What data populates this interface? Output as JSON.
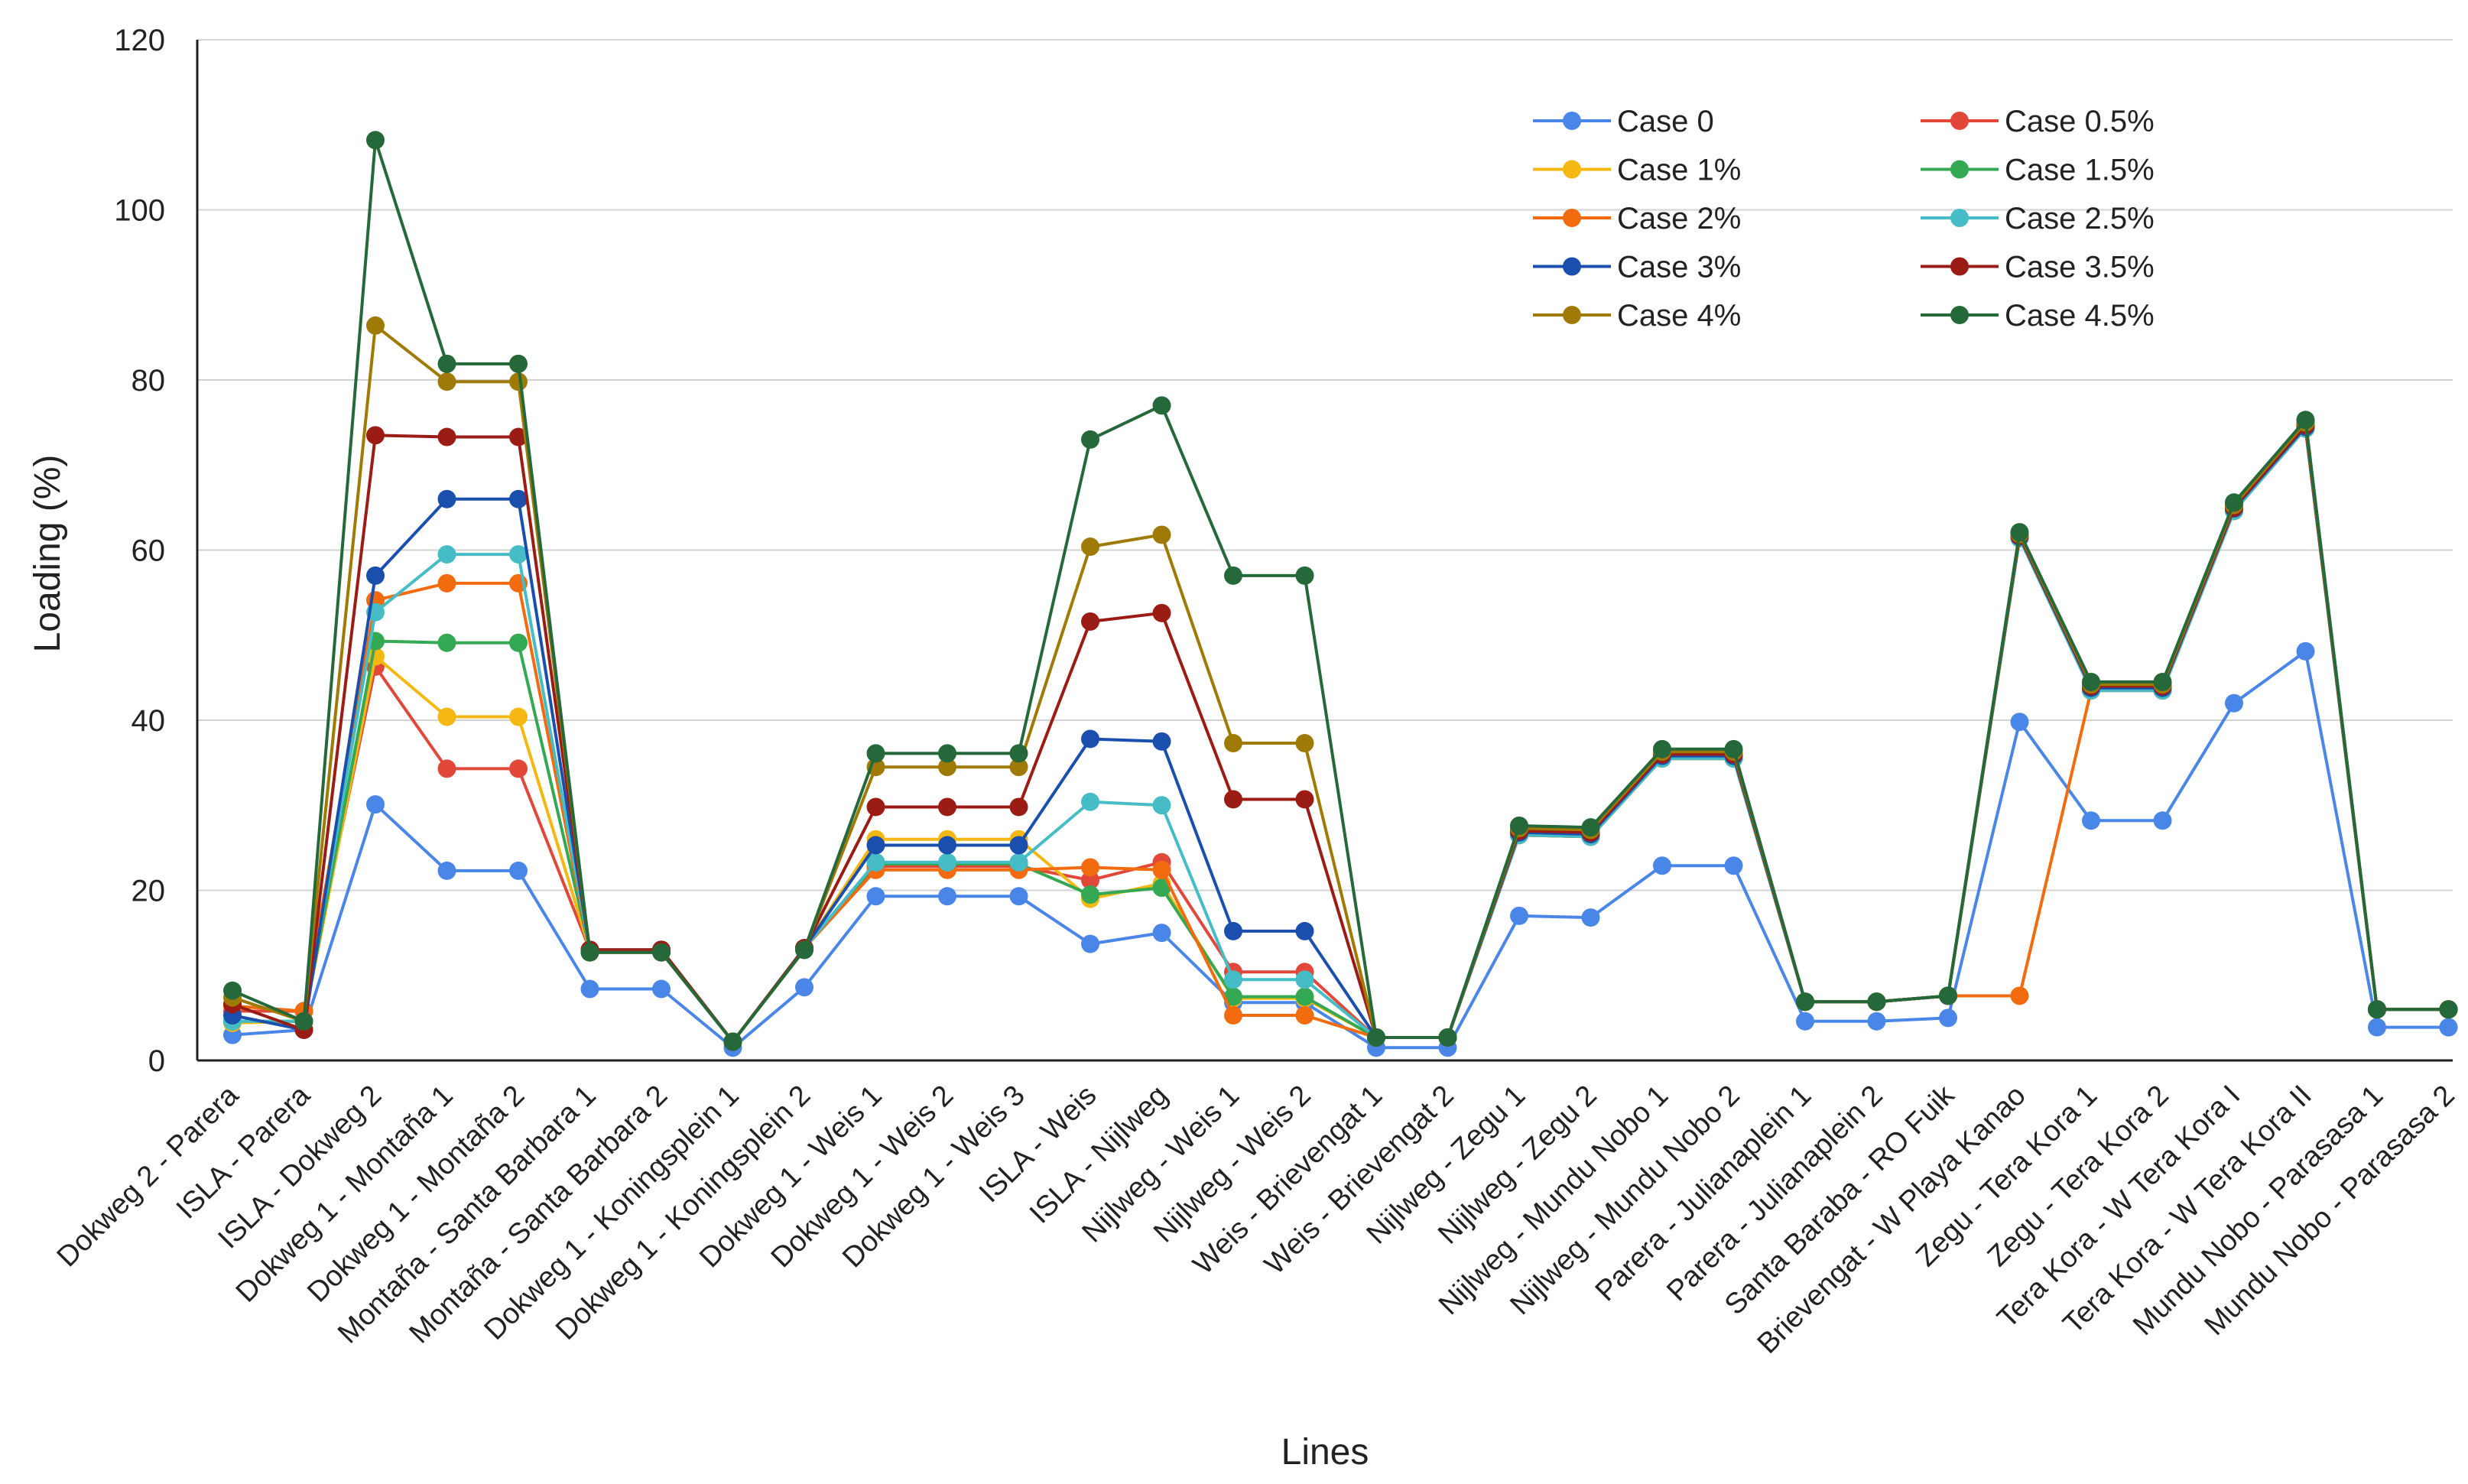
{
  "chart_data": {
    "type": "line",
    "title": "",
    "xlabel": "Lines",
    "ylabel": "Loading (%)",
    "ylim": [
      0,
      120
    ],
    "yticks": [
      0,
      20,
      40,
      60,
      80,
      100,
      120
    ],
    "grid": true,
    "legend_position": "top-right",
    "categories": [
      "Dokweg 2 - Parera",
      "ISLA - Parera",
      "ISLA - Dokweg 2",
      "Dokweg 1 - Montaña 1",
      "Dokweg 1 - Montaña 2",
      "Montaña - Santa Barbara 1",
      "Montaña - Santa Barbara 2",
      "Dokweg 1 - Koningsplein 1",
      "Dokweg 1 - Koningsplein 2",
      "Dokweg 1 - Weis 1",
      "Dokweg 1 - Weis 2",
      "Dokweg 1 - Weis 3",
      "ISLA - Weis",
      "ISLA - Nijlweg",
      "Nijlweg - Weis 1",
      "Nijlweg - Weis 2",
      "Weis - Brievengat 1",
      "Weis - Brievengat 2",
      "Nijlweg - Zegu 1",
      "Nijlweg - Zegu 2",
      "Nijlweg - Mundu Nobo 1",
      "Nijlweg - Mundu Nobo 2",
      "Parera - Julianaplein 1",
      "Parera - Julianaplein 2",
      "Santa Baraba - RO Fuik",
      "Brievengat - W Playa Kanao",
      "Zegu - Tera Kora 1",
      "Zegu - Tera Kora 2",
      "Tera Kora - W Tera Kora I",
      "Tera Kora - W Tera Kora II",
      "Mundu Nobo - Parasasa 1",
      "Mundu Nobo - Parasasa 2"
    ],
    "series": [
      {
        "name": "Case 0",
        "color": "#4a86e8",
        "values": [
          3.0,
          3.6,
          30.1,
          22.3,
          22.3,
          8.4,
          8.4,
          1.5,
          8.6,
          19.3,
          19.3,
          19.3,
          13.7,
          15.0,
          6.8,
          6.8,
          1.5,
          1.5,
          17.0,
          16.8,
          22.9,
          22.9,
          4.6,
          4.6,
          5.0,
          39.8,
          28.2,
          28.2,
          42.0,
          48.1,
          3.9,
          3.9
        ]
      },
      {
        "name": "Case 0.5%",
        "color": "#e2483a",
        "values": [
          5.8,
          5.8,
          46.3,
          34.3,
          34.3,
          13.0,
          13.0,
          2.2,
          13.2,
          22.8,
          22.8,
          22.8,
          21.2,
          23.3,
          10.4,
          10.4,
          2.7,
          2.7,
          26.5,
          26.3,
          35.5,
          35.5,
          6.9,
          6.9,
          7.6,
          61.4,
          43.5,
          43.5,
          64.6,
          74.3,
          6.0,
          6.0
        ]
      },
      {
        "name": "Case 1%",
        "color": "#f5b812",
        "values": [
          4.4,
          4.6,
          47.5,
          40.4,
          40.4,
          13.0,
          13.0,
          2.2,
          13.2,
          26.0,
          26.0,
          26.0,
          19.0,
          20.8,
          7.3,
          7.3,
          2.7,
          2.7,
          26.5,
          26.3,
          35.5,
          35.5,
          6.9,
          6.9,
          7.6,
          61.4,
          43.5,
          43.5,
          64.6,
          74.3,
          6.0,
          6.0
        ]
      },
      {
        "name": "Case 1.5%",
        "color": "#34a853",
        "values": [
          4.6,
          4.6,
          49.3,
          49.1,
          49.1,
          13.0,
          13.0,
          2.2,
          13.2,
          23.1,
          23.1,
          23.1,
          19.5,
          20.3,
          7.5,
          7.5,
          2.7,
          2.7,
          26.5,
          26.3,
          35.5,
          35.5,
          6.9,
          6.9,
          7.6,
          61.4,
          43.5,
          43.5,
          64.6,
          74.3,
          6.0,
          6.0
        ]
      },
      {
        "name": "Case 2%",
        "color": "#f26b0f",
        "values": [
          6.4,
          5.8,
          54.1,
          56.1,
          56.1,
          13.0,
          13.0,
          2.2,
          13.2,
          22.4,
          22.4,
          22.4,
          22.7,
          22.4,
          5.3,
          5.3,
          2.7,
          2.7,
          26.5,
          26.3,
          35.5,
          35.5,
          6.9,
          6.9,
          7.6,
          7.6,
          43.5,
          43.5,
          64.6,
          74.3,
          6.0,
          6.0
        ]
      },
      {
        "name": "Case 2.5%",
        "color": "#46bdc6",
        "values": [
          4.6,
          4.6,
          52.7,
          59.5,
          59.5,
          13.0,
          13.0,
          2.2,
          13.2,
          23.3,
          23.3,
          23.3,
          30.4,
          30.0,
          9.5,
          9.5,
          2.7,
          2.7,
          26.5,
          26.3,
          35.5,
          35.5,
          6.9,
          6.9,
          7.6,
          61.4,
          43.5,
          43.5,
          64.6,
          74.3,
          6.0,
          6.0
        ]
      },
      {
        "name": "Case 3%",
        "color": "#1a4fad",
        "values": [
          5.3,
          3.6,
          57.0,
          66.0,
          66.0,
          13.0,
          13.0,
          2.2,
          13.2,
          25.3,
          25.3,
          25.3,
          37.8,
          37.5,
          15.2,
          15.2,
          2.7,
          2.7,
          26.8,
          26.6,
          35.8,
          35.8,
          6.9,
          6.9,
          7.6,
          61.6,
          43.8,
          43.8,
          64.9,
          74.5,
          6.0,
          6.0
        ]
      },
      {
        "name": "Case 3.5%",
        "color": "#9b1c14",
        "values": [
          6.6,
          3.6,
          73.5,
          73.3,
          73.3,
          13.0,
          13.0,
          2.2,
          13.2,
          29.8,
          29.8,
          29.8,
          51.6,
          52.6,
          30.7,
          30.7,
          2.7,
          2.7,
          27.0,
          26.8,
          36.0,
          36.0,
          6.9,
          6.9,
          7.6,
          61.7,
          44.0,
          44.0,
          65.0,
          74.7,
          6.0,
          6.0
        ]
      },
      {
        "name": "Case 4%",
        "color": "#a07a06",
        "values": [
          7.4,
          4.6,
          86.4,
          79.8,
          79.8,
          12.7,
          12.7,
          2.2,
          13.0,
          34.5,
          34.5,
          34.5,
          60.4,
          61.8,
          37.3,
          37.3,
          2.7,
          2.7,
          27.3,
          27.1,
          36.3,
          36.3,
          6.9,
          6.9,
          7.6,
          61.9,
          44.2,
          44.2,
          65.3,
          75.0,
          6.0,
          6.0
        ]
      },
      {
        "name": "Case 4.5%",
        "color": "#25683a",
        "values": [
          8.2,
          4.6,
          108.2,
          81.9,
          81.9,
          12.7,
          12.7,
          2.2,
          13.0,
          36.1,
          36.1,
          36.1,
          73.0,
          77.0,
          57.0,
          57.0,
          2.7,
          2.7,
          27.6,
          27.4,
          36.6,
          36.6,
          6.9,
          6.9,
          7.6,
          62.1,
          44.5,
          44.5,
          65.6,
          75.3,
          6.0,
          6.0
        ]
      }
    ]
  }
}
